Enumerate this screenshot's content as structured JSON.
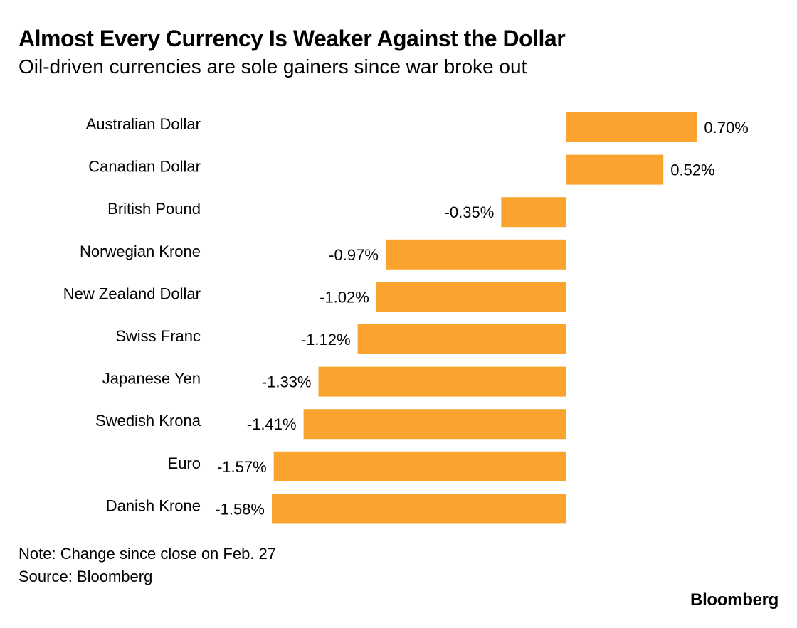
{
  "title": "Almost Every Currency Is Weaker Against the Dollar",
  "subtitle": "Oil-driven currencies are sole gainers since war broke out",
  "note": "Note: Change since close on Feb. 27",
  "source": "Source: Bloomberg",
  "brand": "Bloomberg",
  "colors": {
    "bar": "#FAA42F",
    "text": "#000000",
    "background": "#FFFFFF"
  },
  "chart_data": {
    "type": "bar",
    "orientation": "horizontal",
    "title": "Almost Every Currency Is Weaker Against the Dollar",
    "subtitle": "Oil-driven currencies are sole gainers since war broke out",
    "xlabel": "",
    "ylabel": "",
    "unit": "%",
    "xlim": [
      -1.58,
      0.7
    ],
    "grid": false,
    "legend": "none",
    "categories": [
      "Australian Dollar",
      "Canadian Dollar",
      "British Pound",
      "Norwegian Krone",
      "New Zealand Dollar",
      "Swiss Franc",
      "Japanese Yen",
      "Swedish Krona",
      "Euro",
      "Danish Krone"
    ],
    "values": [
      0.7,
      0.52,
      -0.35,
      -0.97,
      -1.02,
      -1.12,
      -1.33,
      -1.41,
      -1.57,
      -1.58
    ],
    "value_labels": [
      "0.70%",
      "0.52%",
      "-0.35%",
      "-0.97%",
      "-1.02%",
      "-1.12%",
      "-1.33%",
      "-1.41%",
      "-1.57%",
      "-1.58%"
    ]
  }
}
